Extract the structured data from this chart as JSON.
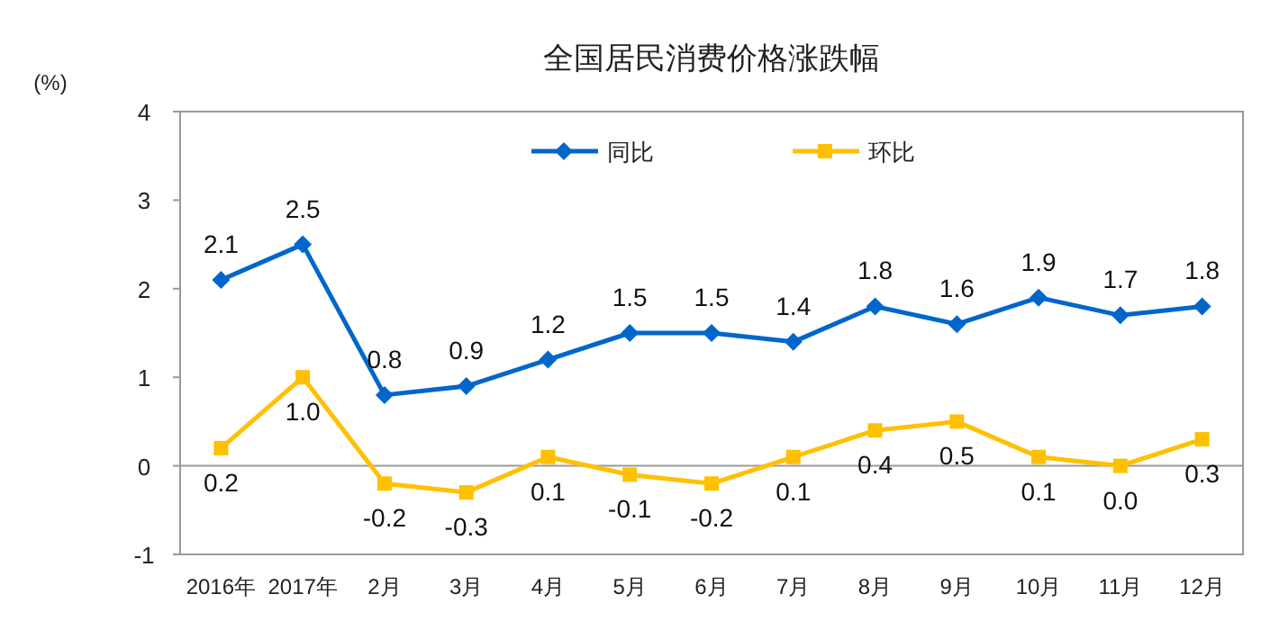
{
  "chart_data": {
    "type": "line",
    "title": "全国居民消费价格涨跌幅",
    "ylabel": "(%)",
    "categories": [
      "2016年",
      "2017年",
      "2月",
      "3月",
      "4月",
      "5月",
      "6月",
      "7月",
      "8月",
      "9月",
      "10月",
      "11月",
      "12月"
    ],
    "series": [
      {
        "name": "同比",
        "color": "#0066cc",
        "marker": "diamond",
        "values": [
          2.1,
          2.5,
          0.8,
          0.9,
          1.2,
          1.5,
          1.5,
          1.4,
          1.8,
          1.6,
          1.9,
          1.7,
          1.8
        ],
        "value_labels": [
          "2.1",
          "2.5",
          "0.8",
          "0.9",
          "1.2",
          "1.5",
          "1.5",
          "1.4",
          "1.8",
          "1.6",
          "1.9",
          "1.7",
          "1.8"
        ]
      },
      {
        "name": "环比",
        "color": "#ffc000",
        "marker": "square",
        "values": [
          0.2,
          1.0,
          -0.2,
          -0.3,
          0.1,
          -0.1,
          -0.2,
          0.1,
          0.4,
          0.5,
          0.1,
          0.0,
          0.3
        ],
        "value_labels": [
          "0.2",
          "1.0",
          "-0.2",
          "-0.3",
          "0.1",
          "-0.1",
          "-0.2",
          "0.1",
          "0.4",
          "0.5",
          "0.1",
          "0.0",
          "0.3"
        ]
      }
    ],
    "ylim": [
      -1,
      4
    ],
    "yticks": [
      -1,
      0,
      1,
      2,
      3,
      4
    ],
    "legend": "top"
  }
}
